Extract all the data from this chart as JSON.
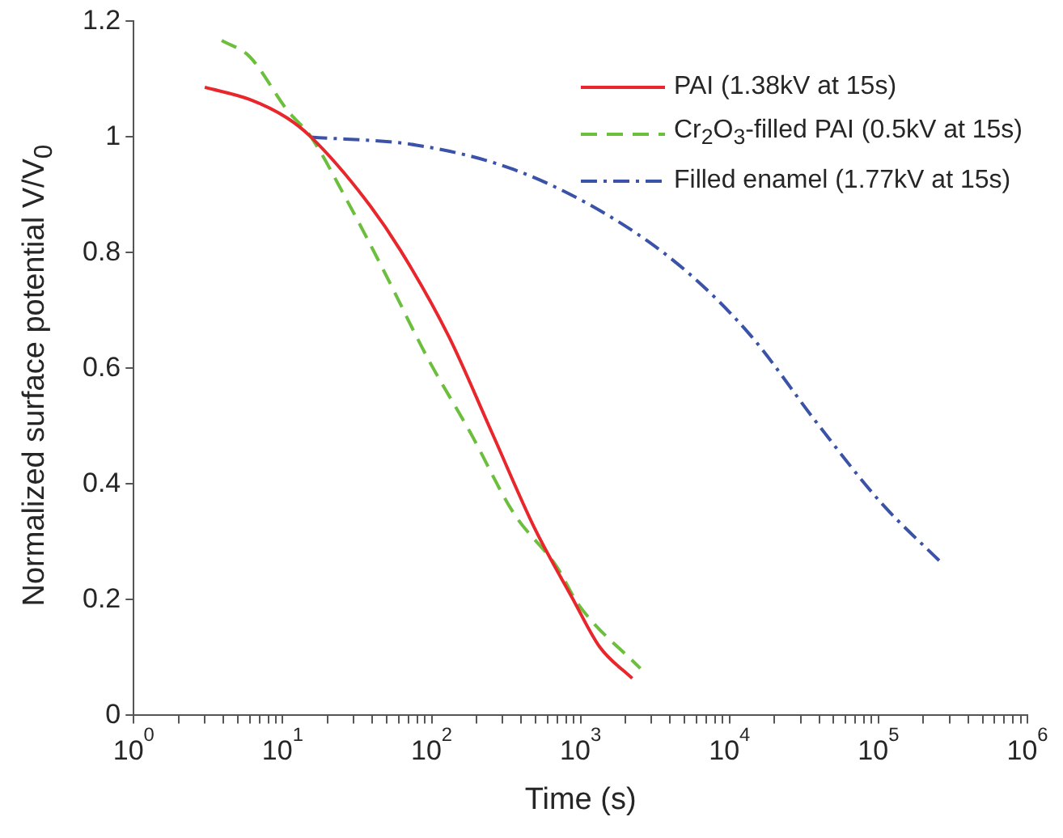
{
  "chart_data": {
    "type": "line",
    "xlabel": "Time (s)",
    "ylabel": "Normalized surface potential V/V$_{0}$",
    "log": "x",
    "xlim": [
      1,
      1000000
    ],
    "ylim": [
      0,
      1.2
    ],
    "xticks": [
      {
        "value": 1,
        "label": "10$^{0}$"
      },
      {
        "value": 2,
        "label": null
      },
      {
        "value": 3,
        "label": null
      },
      {
        "value": 4,
        "label": null
      },
      {
        "value": 5,
        "label": null
      },
      {
        "value": 6,
        "label": null
      },
      {
        "value": 7,
        "label": null
      },
      {
        "value": 8,
        "label": null
      },
      {
        "value": 9,
        "label": null
      },
      {
        "value": 10,
        "label": "10$^{1}$"
      },
      {
        "value": 20,
        "label": null
      },
      {
        "value": 30,
        "label": null
      },
      {
        "value": 40,
        "label": null
      },
      {
        "value": 50,
        "label": null
      },
      {
        "value": 60,
        "label": null
      },
      {
        "value": 70,
        "label": null
      },
      {
        "value": 80,
        "label": null
      },
      {
        "value": 90,
        "label": null
      },
      {
        "value": 100,
        "label": "10$^{2}$"
      },
      {
        "value": 200,
        "label": null
      },
      {
        "value": 300,
        "label": null
      },
      {
        "value": 400,
        "label": null
      },
      {
        "value": 500,
        "label": null
      },
      {
        "value": 600,
        "label": null
      },
      {
        "value": 700,
        "label": null
      },
      {
        "value": 800,
        "label": null
      },
      {
        "value": 900,
        "label": null
      },
      {
        "value": 1000,
        "label": "10$^{3}$"
      },
      {
        "value": 2000,
        "label": null
      },
      {
        "value": 3000,
        "label": null
      },
      {
        "value": 4000,
        "label": null
      },
      {
        "value": 5000,
        "label": null
      },
      {
        "value": 6000,
        "label": null
      },
      {
        "value": 7000,
        "label": null
      },
      {
        "value": 8000,
        "label": null
      },
      {
        "value": 9000,
        "label": null
      },
      {
        "value": 10000,
        "label": "10$^{4}$"
      },
      {
        "value": 20000,
        "label": null
      },
      {
        "value": 30000,
        "label": null
      },
      {
        "value": 40000,
        "label": null
      },
      {
        "value": 50000,
        "label": null
      },
      {
        "value": 60000,
        "label": null
      },
      {
        "value": 70000,
        "label": null
      },
      {
        "value": 80000,
        "label": null
      },
      {
        "value": 90000,
        "label": null
      },
      {
        "value": 100000,
        "label": "10$^{5}$"
      },
      {
        "value": 200000,
        "label": null
      },
      {
        "value": 300000,
        "label": null
      },
      {
        "value": 400000,
        "label": null
      },
      {
        "value": 500000,
        "label": null
      },
      {
        "value": 600000,
        "label": null
      },
      {
        "value": 700000,
        "label": null
      },
      {
        "value": 800000,
        "label": null
      },
      {
        "value": 900000,
        "label": null
      },
      {
        "value": 1000000,
        "label": "10$^{6}$"
      }
    ],
    "yticks": [
      0,
      0.2,
      0.4,
      0.6,
      0.8,
      1,
      1.2
    ],
    "legend": "top right",
    "marker": "none",
    "series": [
      {
        "name": "PAI (1.38kV at 15s)",
        "color": "#e8262b",
        "line_style": "solid",
        "x": [
          3,
          6,
          10.7,
          15.5,
          35.7,
          61.5,
          130,
          254,
          495,
          889,
          1347,
          2223
        ],
        "values": [
          1.086,
          1.065,
          1.033,
          1.0,
          0.893,
          0.805,
          0.656,
          0.489,
          0.322,
          0.201,
          0.118,
          0.064
        ]
      },
      {
        "name": "Cr$_{2}$O$_{3}$-filled PAI (0.5kV at 15s)",
        "color": "#6cbf3c",
        "line_style": "dashed",
        "x": [
          3.9,
          6,
          10.7,
          15.5,
          26.7,
          47.9,
          93.5,
          182,
          355,
          692,
          966,
          2520
        ],
        "values": [
          1.167,
          1.139,
          1.047,
          1.0,
          0.893,
          0.768,
          0.619,
          0.489,
          0.35,
          0.257,
          0.192,
          0.081
        ]
      },
      {
        "name": "Filled enamel (1.77kV at 15s)",
        "color": "#3a52a8",
        "line_style": "dashdot",
        "x": [
          15.5,
          79,
          355,
          1590,
          5130,
          13960,
          38000,
          103000,
          269000
        ],
        "values": [
          1.0,
          0.986,
          0.944,
          0.862,
          0.768,
          0.656,
          0.508,
          0.369,
          0.262
        ]
      }
    ]
  }
}
